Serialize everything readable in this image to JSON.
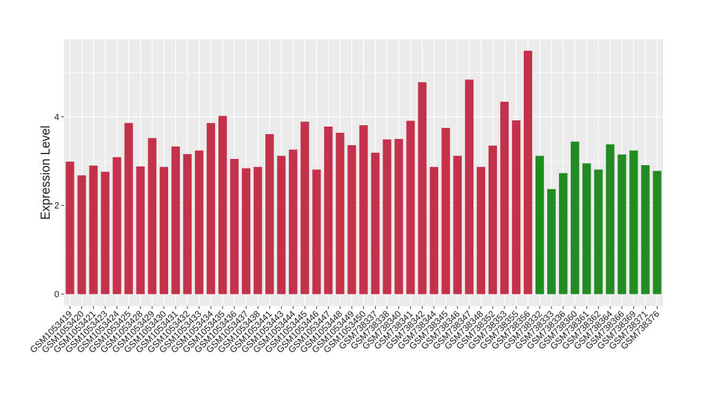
{
  "chart_data": {
    "type": "bar",
    "y_label": "Expression Level",
    "categories": [
      "GSM1053419",
      "GSM1053420",
      "GSM1053421",
      "GSM1053423",
      "GSM1053424",
      "GSM1053425",
      "GSM1053428",
      "GSM1053429",
      "GSM1053430",
      "GSM1053431",
      "GSM1053432",
      "GSM1053433",
      "GSM1053434",
      "GSM1053435",
      "GSM1053436",
      "GSM1053437",
      "GSM1053438",
      "GSM1053441",
      "GSM1053443",
      "GSM1053444",
      "GSM1053445",
      "GSM1053446",
      "GSM1053447",
      "GSM1053448",
      "GSM1053449",
      "GSM1053450",
      "GSM738337",
      "GSM738338",
      "GSM738340",
      "GSM738341",
      "GSM738342",
      "GSM738344",
      "GSM738345",
      "GSM738346",
      "GSM738347",
      "GSM738348",
      "GSM738352",
      "GSM738353",
      "GSM738355",
      "GSM738356",
      "GSM738332",
      "GSM738333",
      "GSM738336",
      "GSM738360",
      "GSM738361",
      "GSM738362",
      "GSM738364",
      "GSM738366",
      "GSM738369",
      "GSM738371",
      "GSM738376"
    ],
    "values": [
      2.99,
      2.68,
      2.9,
      2.76,
      3.09,
      3.86,
      2.88,
      3.52,
      2.87,
      3.33,
      3.16,
      3.24,
      3.86,
      4.02,
      3.05,
      2.84,
      2.87,
      3.61,
      3.12,
      3.26,
      3.89,
      2.81,
      3.78,
      3.64,
      3.36,
      3.81,
      3.19,
      3.49,
      3.5,
      3.91,
      4.78,
      2.87,
      3.75,
      3.12,
      4.84,
      2.87,
      3.35,
      4.34,
      3.92,
      5.49,
      3.12,
      2.37,
      2.73,
      3.44,
      2.95,
      2.81,
      3.38,
      3.15,
      3.24,
      2.91,
      2.78
    ],
    "colors": [
      "#c4314b",
      "#c4314b",
      "#c4314b",
      "#c4314b",
      "#c4314b",
      "#c4314b",
      "#c4314b",
      "#c4314b",
      "#c4314b",
      "#c4314b",
      "#c4314b",
      "#c4314b",
      "#c4314b",
      "#c4314b",
      "#c4314b",
      "#c4314b",
      "#c4314b",
      "#c4314b",
      "#c4314b",
      "#c4314b",
      "#c4314b",
      "#c4314b",
      "#c4314b",
      "#c4314b",
      "#c4314b",
      "#c4314b",
      "#c4314b",
      "#c4314b",
      "#c4314b",
      "#c4314b",
      "#c4314b",
      "#c4314b",
      "#c4314b",
      "#c4314b",
      "#c4314b",
      "#c4314b",
      "#c4314b",
      "#c4314b",
      "#c4314b",
      "#c4314b",
      "#228b22",
      "#228b22",
      "#228b22",
      "#228b22",
      "#228b22",
      "#228b22",
      "#228b22",
      "#228b22",
      "#228b22",
      "#228b22",
      "#228b22"
    ],
    "ylim": [
      -0.27,
      5.75
    ],
    "yticks": [
      0,
      2,
      4
    ],
    "minor_yticks": [
      1,
      3,
      5
    ],
    "grid": true
  }
}
